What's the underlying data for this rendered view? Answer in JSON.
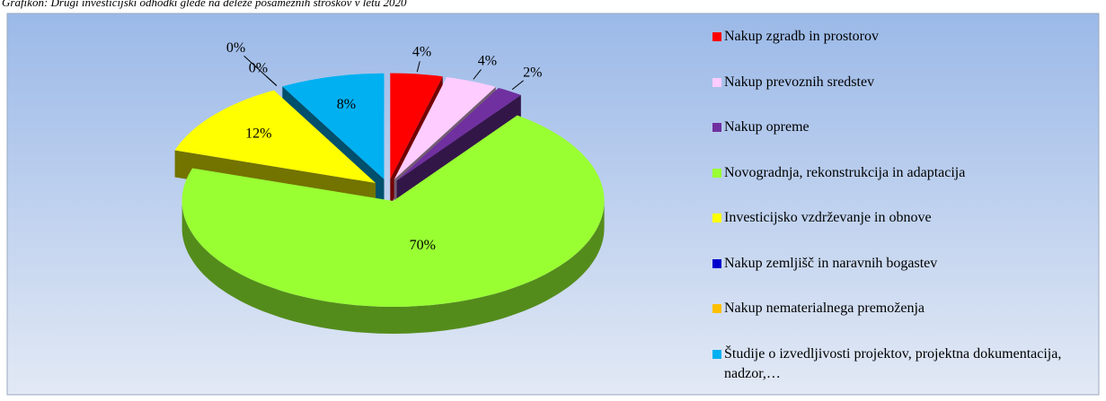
{
  "chart_data": {
    "type": "pie",
    "title": "Grafikon: Drugi investicijski odhodki glede na deleže posameznih stroškov v letu 2020",
    "categories": [
      "Nakup zgradb in prostorov",
      "Nakup prevoznih sredstev",
      "Nakup opreme",
      "Novogradnja, rekonstrukcija in adaptacija",
      "Investicijsko vzdrževanje in obnove",
      "Nakup zemljišč in naravnih bogastev",
      "Nakup nematerialnega premoženja",
      "Študije o izvedljivosti projektov, projektna dokumentacija, nadzor,…"
    ],
    "values": [
      4,
      4,
      2,
      70,
      12,
      0,
      0,
      8
    ],
    "value_labels": [
      "4%",
      "4%",
      "2%",
      "70%",
      "12%",
      "0%",
      "0%",
      "8%"
    ],
    "colors": [
      "#ff0000",
      "#ffccff",
      "#7030a0",
      "#99ff33",
      "#ffff00",
      "#0000cc",
      "#ffc000",
      "#00b0f0"
    ],
    "legend": "right"
  }
}
